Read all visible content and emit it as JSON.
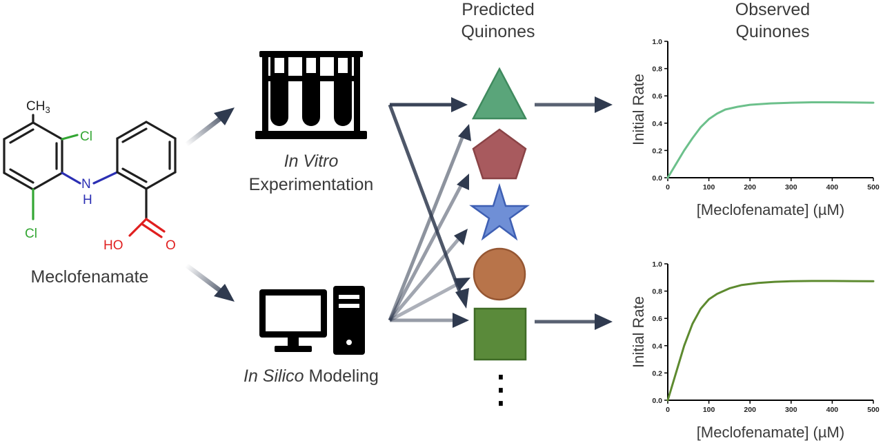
{
  "molecule": {
    "name": "Meclofenamate",
    "atoms": {
      "ch3_c": "CH",
      "ch3_sub": "3",
      "cl_top": "Cl",
      "cl_bottom": "Cl",
      "nh_n": "N",
      "nh_h": "H",
      "ho": "HO",
      "o": "O"
    },
    "colors": {
      "bond": "#1f1f1f",
      "cl": "#33a633",
      "n": "#2b2fb3",
      "o": "#e01f1f"
    }
  },
  "methods": {
    "in_vitro": {
      "line1": "In Vitro",
      "line2": "Experimentation",
      "icon": "test-tubes-rack-icon"
    },
    "in_silico": {
      "italic": "In Silico",
      "rest": " Modeling",
      "icon": "desktop-computer-icon"
    }
  },
  "predicted": {
    "header": [
      "Predicted",
      "Quinones"
    ],
    "shapes": [
      {
        "shape": "triangle",
        "fill": "#5aa57a",
        "stroke": "#3f8a5e"
      },
      {
        "shape": "pentagon",
        "fill": "#a85a5e",
        "stroke": "#8a4346"
      },
      {
        "shape": "star",
        "fill": "#6f8fd6",
        "stroke": "#3e5fb3"
      },
      {
        "shape": "circle",
        "fill": "#b8744a",
        "stroke": "#955632"
      },
      {
        "shape": "square",
        "fill": "#5a8a3a",
        "stroke": "#3f6b26"
      }
    ],
    "ellipsis": "⋮"
  },
  "observed": {
    "header": [
      "Observed",
      "Quinones"
    ]
  },
  "arrow_color": "#2f3a4f",
  "chart_data": [
    {
      "type": "line",
      "title": "",
      "xlabel": "[Meclofenamate] (µM)",
      "ylabel": "Initial Rate",
      "xlim": [
        0,
        500
      ],
      "ylim": [
        0,
        1.0
      ],
      "xticks": [
        0,
        100,
        200,
        300,
        400,
        500
      ],
      "yticks": [
        0.0,
        0.2,
        0.4,
        0.6,
        0.8,
        1.0
      ],
      "series": [
        {
          "color": "#6cc08b",
          "x": [
            0,
            20,
            40,
            60,
            80,
            100,
            120,
            140,
            170,
            200,
            250,
            300,
            350,
            400,
            450,
            500
          ],
          "y": [
            0,
            0.1,
            0.2,
            0.29,
            0.37,
            0.43,
            0.47,
            0.5,
            0.52,
            0.535,
            0.545,
            0.55,
            0.553,
            0.553,
            0.552,
            0.55
          ]
        }
      ]
    },
    {
      "type": "line",
      "title": "",
      "xlabel": "[Meclofenamate] (µM)",
      "ylabel": "Initial Rate",
      "xlim": [
        0,
        500
      ],
      "ylim": [
        0,
        1.0
      ],
      "xticks": [
        0,
        100,
        200,
        300,
        400,
        500
      ],
      "yticks": [
        0.0,
        0.2,
        0.4,
        0.6,
        0.8,
        1.0
      ],
      "series": [
        {
          "color": "#5d8a2f",
          "x": [
            0,
            20,
            40,
            60,
            80,
            100,
            120,
            150,
            180,
            220,
            260,
            300,
            350,
            400,
            450,
            500
          ],
          "y": [
            0,
            0.2,
            0.4,
            0.56,
            0.67,
            0.74,
            0.78,
            0.82,
            0.845,
            0.86,
            0.868,
            0.872,
            0.874,
            0.874,
            0.873,
            0.872
          ]
        }
      ]
    }
  ]
}
